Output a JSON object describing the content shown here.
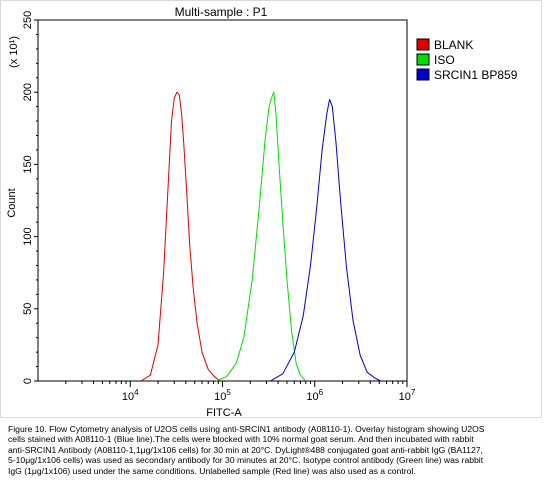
{
  "chart_data": {
    "type": "line",
    "title": "Multi-sample : P1",
    "xlabel": "FITC-A",
    "ylabel": "Count",
    "y_multiplier": "(x 10¹)",
    "x_scale": "log",
    "xlim": [
      1000,
      10000000
    ],
    "ylim": [
      0,
      250
    ],
    "x_ticks": [
      {
        "value": 10000,
        "base": "10",
        "exp": "4"
      },
      {
        "value": 100000,
        "base": "10",
        "exp": "5"
      },
      {
        "value": 1000000,
        "base": "10",
        "exp": "6"
      },
      {
        "value": 10000000,
        "base": "10",
        "exp": "7"
      }
    ],
    "y_ticks": [
      0,
      50,
      100,
      150,
      200,
      250
    ],
    "legend_position": "top-right",
    "series": [
      {
        "name": "BLANK",
        "color": "#e00000",
        "x": [
          13000,
          16500,
          20000,
          23000,
          26000,
          28000,
          30000,
          32000,
          34000,
          36000,
          38000,
          41000,
          44000,
          48000,
          53000,
          60000,
          70000,
          82000,
          95000
        ],
        "y": [
          0,
          4,
          25,
          75,
          140,
          180,
          196,
          200,
          198,
          185,
          165,
          130,
          95,
          65,
          40,
          20,
          8,
          3,
          0
        ]
      },
      {
        "name": "ISO",
        "color": "#00dd00",
        "x": [
          85000,
          110000,
          140000,
          170000,
          210000,
          250000,
          290000,
          320000,
          340000,
          360000,
          380000,
          410000,
          450000,
          500000,
          560000,
          630000,
          700000,
          800000
        ],
        "y": [
          0,
          3,
          12,
          30,
          70,
          120,
          168,
          190,
          196,
          200,
          185,
          150,
          110,
          70,
          35,
          12,
          4,
          0
        ]
      },
      {
        "name": "SRCIN1 BP859",
        "color": "#0000cc",
        "x": [
          330000,
          450000,
          600000,
          750000,
          900000,
          1050000,
          1200000,
          1350000,
          1450000,
          1550000,
          1700000,
          1900000,
          2200000,
          2600000,
          3100000,
          3700000,
          4500000,
          5200000
        ],
        "y": [
          0,
          5,
          20,
          45,
          80,
          120,
          160,
          185,
          195,
          190,
          165,
          125,
          80,
          42,
          18,
          6,
          2,
          0
        ]
      }
    ]
  },
  "caption": {
    "lines": [
      "Figure 10. Flow Cytometry analysis of U2OS cells using anti-SRCIN1 antibody (A08110-1).  Overlay histogram showing U2OS",
      "cells stained with A08110-1 (Blue line).The cells were blocked with 10% normal goat serum. And then incubated with rabbit",
      "anti-SRCIN1 Antibody (A08110-1,1μg/1x106 cells) for 30 min at 20°C. DyLight®488 conjugated goat anti-rabbit IgG (BA1127,",
      "5-10μg/1x106 cells) was used as secondary antibody for 30 minutes at 20°C. Isotype control antibody (Green line) was rabbit",
      "IgG (1μg/1x106) used under the same conditions. Unlabelled sample (Red line) was also used as a control."
    ]
  }
}
